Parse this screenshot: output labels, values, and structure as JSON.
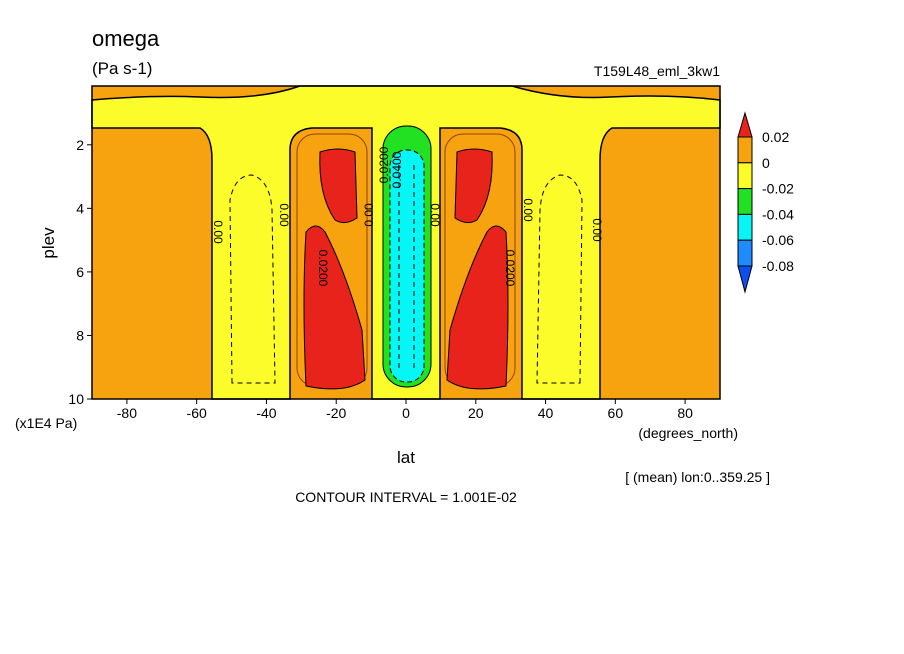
{
  "chart_data": {
    "type": "contour",
    "title": "omega",
    "units": "(Pa s-1)",
    "run_label": "T159L48_eml_3kw1",
    "x_label": "lat",
    "x_units": "(degrees_north)",
    "y_label": "plev",
    "y_units": "(x1E4 Pa)",
    "xlim": [
      -90,
      90
    ],
    "xticks": [
      -80,
      -60,
      -40,
      -20,
      0,
      20,
      40,
      60,
      80
    ],
    "ylim": [
      10,
      0.15
    ],
    "yticks": [
      2,
      4,
      6,
      8,
      10
    ],
    "levels": [
      0.02,
      0,
      -0.02,
      -0.04,
      -0.06,
      -0.08
    ],
    "colors": [
      "#e8231c",
      "#f7a20f",
      "#fcfc2a",
      "#22e022",
      "#06f6f6",
      "#1e8cff",
      "#0a50f0"
    ],
    "contour_labels": [
      "0.00",
      "0.0200",
      "0.0400"
    ],
    "footnote": "[ (mean) lon:0..359.25 ]",
    "contour_interval": "CONTOUR INTERVAL = 1.001E-02"
  }
}
